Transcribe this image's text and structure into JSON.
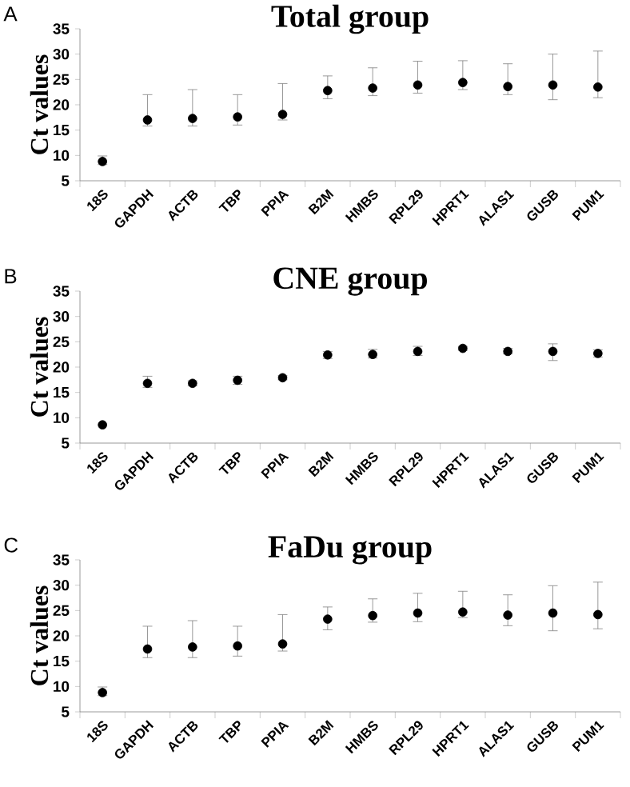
{
  "chart_data": [
    {
      "type": "scatter",
      "title": "Total group",
      "ylabel": "Ct values",
      "annotations": [
        "A"
      ],
      "marker": "circle",
      "color": "#000000",
      "categories": [
        "18S",
        "GAPDH",
        "ACTB",
        "TBP",
        "PPIA",
        "B2M",
        "HMBS",
        "RPL29",
        "HPRT1",
        "ALAS1",
        "GUSB",
        "PUM1"
      ],
      "values": [
        8.8,
        17.0,
        17.3,
        17.6,
        18.1,
        22.8,
        23.3,
        23.9,
        24.4,
        23.6,
        23.9,
        23.5
      ],
      "errors": [
        [
          8.2,
          9.9
        ],
        [
          15.8,
          22.0
        ],
        [
          15.8,
          23.0
        ],
        [
          16.0,
          22.0
        ],
        [
          17.0,
          24.2
        ],
        [
          21.2,
          25.7
        ],
        [
          21.8,
          27.3
        ],
        [
          22.3,
          28.6
        ],
        [
          23.0,
          28.7
        ],
        [
          22.0,
          28.1
        ],
        [
          21.0,
          30.0
        ],
        [
          21.4,
          30.6
        ]
      ],
      "ylim": [
        5,
        35
      ],
      "yticks": [
        5,
        10,
        15,
        20,
        25,
        30,
        35
      ]
    },
    {
      "type": "scatter",
      "title": "CNE group",
      "ylabel": "Ct values",
      "annotations": [
        "B"
      ],
      "marker": "circle",
      "color": "#000000",
      "categories": [
        "18S",
        "GAPDH",
        "ACTB",
        "TBP",
        "PPIA",
        "B2M",
        "HMBS",
        "RPL29",
        "HPRT1",
        "ALAS1",
        "GUSB",
        "PUM1"
      ],
      "values": [
        8.6,
        16.8,
        16.8,
        17.4,
        17.9,
        22.4,
        22.5,
        23.1,
        23.7,
        23.1,
        23.1,
        22.7
      ],
      "errors": [
        null,
        [
          16.0,
          18.2
        ],
        [
          16.3,
          17.3
        ],
        [
          16.6,
          18.2
        ],
        [
          17.5,
          18.3
        ],
        [
          21.7,
          23.1
        ],
        [
          21.8,
          23.5
        ],
        [
          22.3,
          24.1
        ],
        [
          23.3,
          24.1
        ],
        [
          22.6,
          23.7
        ],
        [
          21.3,
          24.6
        ],
        [
          22.0,
          23.4
        ]
      ],
      "ylim": [
        5,
        35
      ],
      "yticks": [
        5,
        10,
        15,
        20,
        25,
        30,
        35
      ]
    },
    {
      "type": "scatter",
      "title": "FaDu group",
      "ylabel": "Ct values",
      "annotations": [
        "C"
      ],
      "marker": "circle",
      "color": "#000000",
      "categories": [
        "18S",
        "GAPDH",
        "ACTB",
        "TBP",
        "PPIA",
        "B2M",
        "HMBS",
        "RPL29",
        "HPRT1",
        "ALAS1",
        "GUSB",
        "PUM1"
      ],
      "values": [
        8.8,
        17.4,
        17.8,
        18.0,
        18.4,
        23.3,
        24.0,
        24.5,
        24.7,
        24.1,
        24.5,
        24.2
      ],
      "errors": [
        [
          8.2,
          9.9
        ],
        [
          15.7,
          21.9
        ],
        [
          15.7,
          23.0
        ],
        [
          16.0,
          21.9
        ],
        [
          17.0,
          24.2
        ],
        [
          21.2,
          25.7
        ],
        [
          22.7,
          27.3
        ],
        [
          22.8,
          28.4
        ],
        [
          23.6,
          28.8
        ],
        [
          22.0,
          28.1
        ],
        [
          21.0,
          29.9
        ],
        [
          21.4,
          30.6
        ]
      ],
      "ylim": [
        5,
        35
      ],
      "yticks": [
        5,
        10,
        15,
        20,
        25,
        30,
        35
      ]
    }
  ]
}
